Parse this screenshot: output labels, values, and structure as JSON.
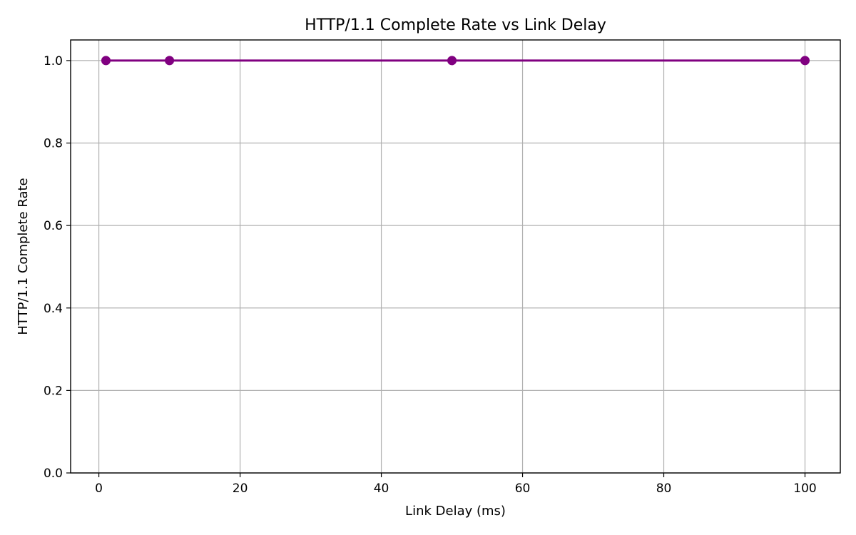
{
  "chart_data": {
    "type": "line",
    "title": "HTTP/1.1 Complete Rate vs Link Delay",
    "xlabel": "Link Delay (ms)",
    "ylabel": "HTTP/1.1 Complete Rate",
    "xlim": [
      -4,
      105
    ],
    "ylim": [
      0.0,
      1.05
    ],
    "xticks": [
      0,
      20,
      40,
      60,
      80,
      100
    ],
    "yticks": [
      0.0,
      0.2,
      0.4,
      0.6,
      0.8,
      1.0
    ],
    "xtick_labels": [
      "0",
      "20",
      "40",
      "60",
      "80",
      "100"
    ],
    "ytick_labels": [
      "0.0",
      "0.2",
      "0.4",
      "0.6",
      "0.8",
      "1.0"
    ],
    "grid": true,
    "series": [
      {
        "color": "#800080",
        "marker": "circle",
        "x": [
          1,
          10,
          50,
          100
        ],
        "y": [
          1.0,
          1.0,
          1.0,
          1.0
        ]
      }
    ]
  }
}
